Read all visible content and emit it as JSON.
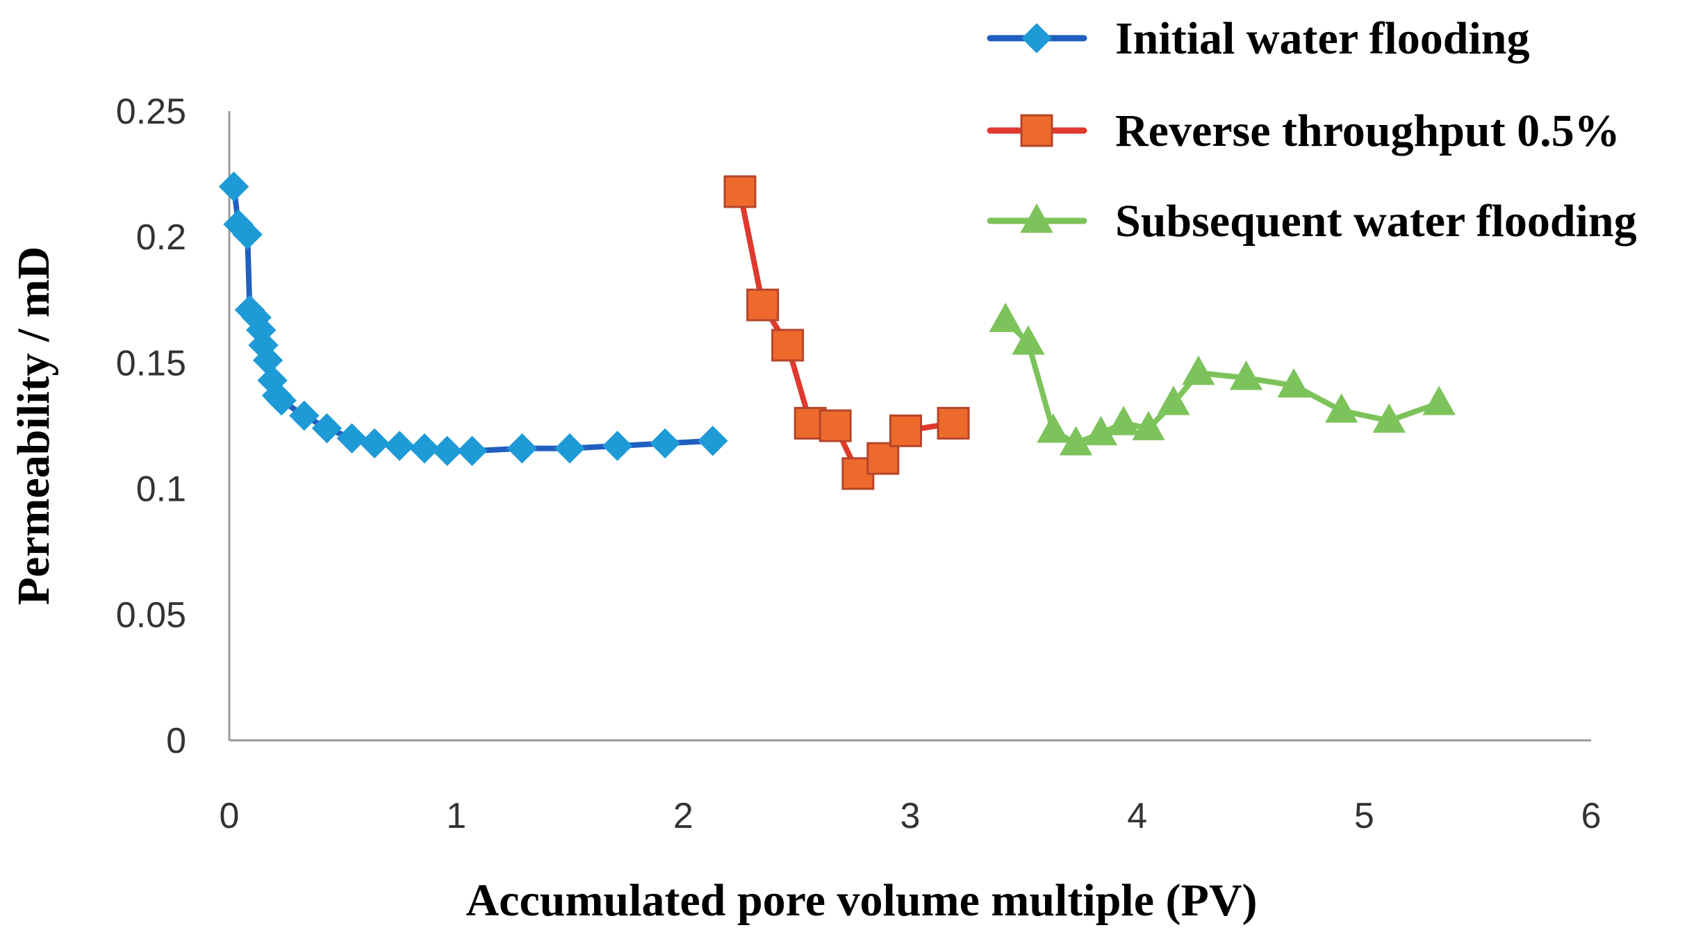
{
  "chart_data": {
    "type": "line",
    "title": "",
    "xlabel": "Accumulated pore volume multiple (PV)",
    "ylabel": "Permeability / mD",
    "xlim": [
      0,
      6
    ],
    "ylim": [
      0,
      0.25
    ],
    "x_ticks": [
      {
        "value": 0,
        "label": "0"
      },
      {
        "value": 1,
        "label": "1"
      },
      {
        "value": 2,
        "label": "2"
      },
      {
        "value": 3,
        "label": "3"
      },
      {
        "value": 4,
        "label": "4"
      },
      {
        "value": 5,
        "label": "5"
      },
      {
        "value": 6,
        "label": "6"
      }
    ],
    "y_ticks": [
      {
        "value": 0,
        "label": "0"
      },
      {
        "value": 0.05,
        "label": "0.05"
      },
      {
        "value": 0.1,
        "label": "0.1"
      },
      {
        "value": 0.15,
        "label": "0.15"
      },
      {
        "value": 0.2,
        "label": "0.2"
      },
      {
        "value": 0.25,
        "label": "0.25"
      }
    ],
    "grid": false,
    "legend_position": "top-right",
    "series": [
      {
        "name": "Initial water flooding",
        "marker": "diamond",
        "line_color": "#1f5fbf",
        "marker_color": "#1e9ad6",
        "x": [
          0.02,
          0.04,
          0.08,
          0.09,
          0.12,
          0.14,
          0.15,
          0.17,
          0.19,
          0.21,
          0.23,
          0.33,
          0.43,
          0.54,
          0.64,
          0.75,
          0.86,
          0.96,
          1.07,
          1.29,
          1.5,
          1.71,
          1.92,
          2.13
        ],
        "y": [
          0.22,
          0.205,
          0.201,
          0.171,
          0.168,
          0.163,
          0.157,
          0.151,
          0.143,
          0.137,
          0.135,
          0.129,
          0.124,
          0.12,
          0.118,
          0.117,
          0.116,
          0.115,
          0.115,
          0.116,
          0.116,
          0.117,
          0.118,
          0.119
        ]
      },
      {
        "name": "Reverse throughput 0.5%",
        "marker": "square",
        "line_color": "#e03a2e",
        "marker_color": "#ed6a2c",
        "x": [
          2.25,
          2.35,
          2.46,
          2.56,
          2.67,
          2.77,
          2.88,
          2.98,
          3.19
        ],
        "y": [
          0.218,
          0.173,
          0.157,
          0.126,
          0.125,
          0.106,
          0.112,
          0.123,
          0.126
        ]
      },
      {
        "name": "Subsequent water flooding",
        "marker": "triangle",
        "line_color": "#7dc35b",
        "marker_color": "#7dc35b",
        "x": [
          3.42,
          3.52,
          3.63,
          3.73,
          3.84,
          3.94,
          4.05,
          4.16,
          4.27,
          4.48,
          4.69,
          4.9,
          5.11,
          5.33
        ],
        "y": [
          0.167,
          0.158,
          0.123,
          0.118,
          0.122,
          0.126,
          0.124,
          0.134,
          0.146,
          0.144,
          0.141,
          0.131,
          0.127,
          0.134
        ]
      }
    ]
  }
}
